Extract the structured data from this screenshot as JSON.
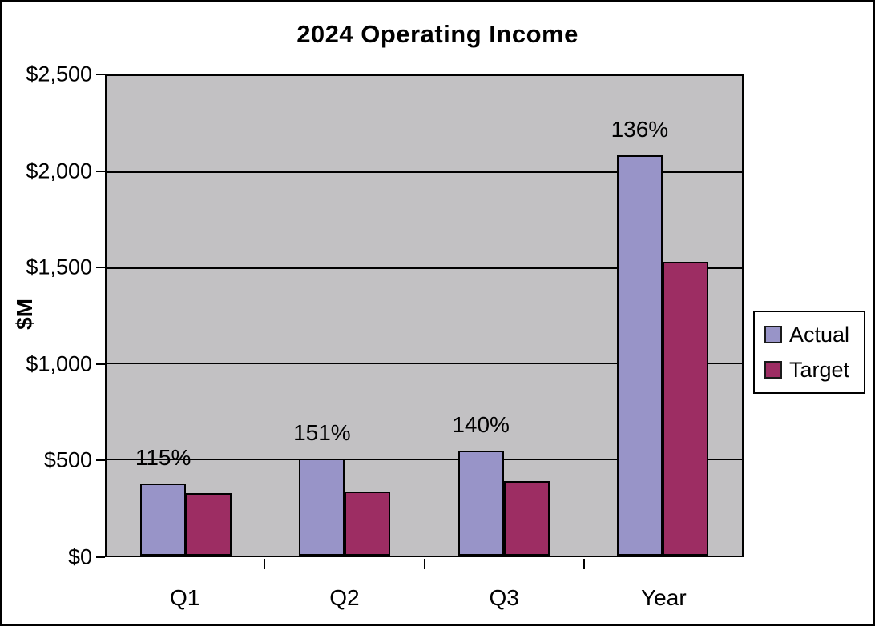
{
  "chart_data": {
    "type": "bar",
    "title": "2024 Operating Income",
    "ylabel": "$M",
    "xlabel": "",
    "categories": [
      "Q1",
      "Q2",
      "Q3",
      "Year"
    ],
    "series": [
      {
        "name": "Actual",
        "color": "#9894C8",
        "values": [
          375,
          505,
          545,
          2085
        ]
      },
      {
        "name": "Target",
        "color": "#9D2D63",
        "values": [
          325,
          335,
          390,
          1530
        ]
      }
    ],
    "bar_labels": {
      "above_series": "Actual",
      "values": [
        "115%",
        "151%",
        "140%",
        "136%"
      ]
    },
    "ylim": [
      0,
      2500
    ],
    "ytick_step": 500,
    "ytick_labels": [
      "$0",
      "$500",
      "$1,000",
      "$1,500",
      "$2,000",
      "$2,500"
    ],
    "grid": "horizontal",
    "plot_background": "#C2C1C3",
    "gridline_color": "#000000",
    "legend_position": "right"
  },
  "legend": {
    "items": [
      {
        "label": "Actual"
      },
      {
        "label": "Target"
      }
    ]
  }
}
